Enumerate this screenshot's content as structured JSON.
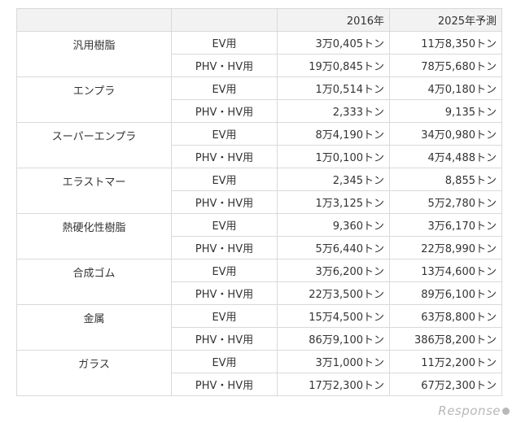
{
  "header": {
    "col0": "",
    "col1": "",
    "col2": "2016年",
    "col3": "2025年予測"
  },
  "groups": [
    {
      "material": "汎用樹脂",
      "rows": [
        {
          "usage": "EV用",
          "y2016": "3万0,405トン",
          "y2025": "11万8,350トン"
        },
        {
          "usage": "PHV・HV用",
          "y2016": "19万0,845トン",
          "y2025": "78万5,680トン"
        }
      ]
    },
    {
      "material": "エンプラ",
      "rows": [
        {
          "usage": "EV用",
          "y2016": "1万0,514トン",
          "y2025": "4万0,180トン"
        },
        {
          "usage": "PHV・HV用",
          "y2016": "2,333トン",
          "y2025": "9,135トン"
        }
      ]
    },
    {
      "material": "スーパーエンプラ",
      "rows": [
        {
          "usage": "EV用",
          "y2016": "8万4,190トン",
          "y2025": "34万0,980トン"
        },
        {
          "usage": "PHV・HV用",
          "y2016": "1万0,100トン",
          "y2025": "4万4,488トン"
        }
      ]
    },
    {
      "material": "エラストマー",
      "rows": [
        {
          "usage": "EV用",
          "y2016": "2,345トン",
          "y2025": "8,855トン"
        },
        {
          "usage": "PHV・HV用",
          "y2016": "1万3,125トン",
          "y2025": "5万2,780トン"
        }
      ]
    },
    {
      "material": "熱硬化性樹脂",
      "rows": [
        {
          "usage": "EV用",
          "y2016": "9,360トン",
          "y2025": "3万6,170トン"
        },
        {
          "usage": "PHV・HV用",
          "y2016": "5万6,440トン",
          "y2025": "22万8,990トン"
        }
      ]
    },
    {
      "material": "合成ゴム",
      "rows": [
        {
          "usage": "EV用",
          "y2016": "3万6,200トン",
          "y2025": "13万4,600トン"
        },
        {
          "usage": "PHV・HV用",
          "y2016": "22万3,500トン",
          "y2025": "89万6,100トン"
        }
      ]
    },
    {
      "material": "金属",
      "rows": [
        {
          "usage": "EV用",
          "y2016": "15万4,500トン",
          "y2025": "63万8,800トン"
        },
        {
          "usage": "PHV・HV用",
          "y2016": "86万9,100トン",
          "y2025": "386万8,200トン"
        }
      ]
    },
    {
      "material": "ガラス",
      "rows": [
        {
          "usage": "EV用",
          "y2016": "3万1,000トン",
          "y2025": "11万2,200トン"
        },
        {
          "usage": "PHV・HV用",
          "y2016": "17万2,300トン",
          "y2025": "67万2,300トン"
        }
      ]
    }
  ],
  "watermark": "Response"
}
